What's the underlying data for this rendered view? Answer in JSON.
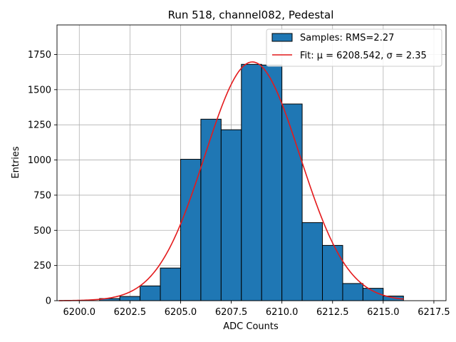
{
  "chart_data": {
    "type": "bar",
    "title": "Run 518, channel082, Pedestal",
    "xlabel": "ADC Counts",
    "ylabel": "Entries",
    "xlim": [
      6198.9,
      6218.1
    ],
    "ylim": [
      0,
      1960
    ],
    "xticks": [
      6200.0,
      6202.5,
      6205.0,
      6207.5,
      6210.0,
      6212.5,
      6215.0,
      6217.5
    ],
    "xtick_labels": [
      "6200.0",
      "6202.5",
      "6205.0",
      "6207.5",
      "6210.0",
      "6212.5",
      "6215.0",
      "6217.5"
    ],
    "yticks": [
      0,
      250,
      500,
      750,
      1000,
      1250,
      1500,
      1750
    ],
    "ytick_labels": [
      "0",
      "250",
      "500",
      "750",
      "1000",
      "1250",
      "1500",
      "1750"
    ],
    "grid": true,
    "legend_position": "top-right",
    "bins": [
      {
        "x0": 6201.0,
        "x1": 6202.0,
        "count": 15
      },
      {
        "x0": 6202.0,
        "x1": 6203.0,
        "count": 30
      },
      {
        "x0": 6203.0,
        "x1": 6204.0,
        "count": 105
      },
      {
        "x0": 6204.0,
        "x1": 6205.0,
        "count": 232
      },
      {
        "x0": 6205.0,
        "x1": 6206.0,
        "count": 1005
      },
      {
        "x0": 6206.0,
        "x1": 6207.0,
        "count": 1290
      },
      {
        "x0": 6207.0,
        "x1": 6208.0,
        "count": 1215
      },
      {
        "x0": 6208.0,
        "x1": 6209.0,
        "count": 1680
      },
      {
        "x0": 6209.0,
        "x1": 6210.0,
        "count": 1675
      },
      {
        "x0": 6210.0,
        "x1": 6211.0,
        "count": 1398
      },
      {
        "x0": 6211.0,
        "x1": 6212.0,
        "count": 555
      },
      {
        "x0": 6212.0,
        "x1": 6213.0,
        "count": 393
      },
      {
        "x0": 6213.0,
        "x1": 6214.0,
        "count": 122
      },
      {
        "x0": 6214.0,
        "x1": 6215.0,
        "count": 88
      },
      {
        "x0": 6215.0,
        "x1": 6216.0,
        "count": 33
      }
    ],
    "fit": {
      "mu": 6208.542,
      "sigma": 2.35,
      "amplitude": 1697,
      "x_start": 6199.0,
      "x_end": 6216.0
    },
    "series": [
      {
        "name": "Samples: RMS=2.27",
        "type": "histogram",
        "color": "#1f77b4"
      },
      {
        "name": "Fit: μ = 6208.542, σ = 2.35",
        "type": "line",
        "color": "#e41a1c"
      }
    ]
  }
}
